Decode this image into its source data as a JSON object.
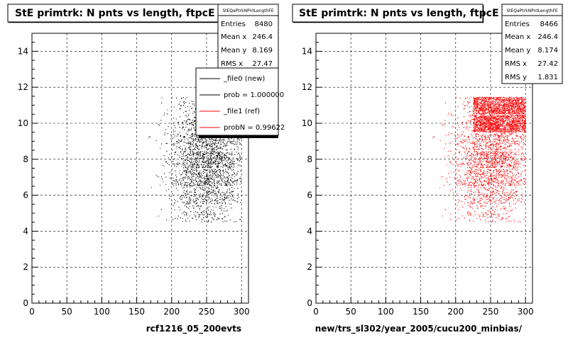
{
  "footer_text": "",
  "legend": {
    "entries": [
      {
        "label": "_file0 (new)",
        "color": "#000000"
      },
      {
        "label": "prob = 1.000000",
        "color": "#000000"
      },
      {
        "label": "_file1 (ref)",
        "color": "#ff0000"
      },
      {
        "label": "probN = 0.99622",
        "color": "#ff0000"
      }
    ]
  },
  "chart_data": [
    {
      "type": "scatter",
      "title": "StE primtrk: N pnts vs length, ftpcE",
      "xlabel": "rcf1216_05_200evts",
      "ylabel": "",
      "xlim": [
        0,
        310
      ],
      "ylim": [
        0,
        15
      ],
      "xticks": [
        "0",
        "50",
        "100",
        "150",
        "200",
        "250",
        "300"
      ],
      "yticks": [
        "0",
        "2",
        "4",
        "6",
        "8",
        "10",
        "12",
        "14"
      ],
      "grid": true,
      "marker_color": "#000000",
      "stats": {
        "name": "StEQaPtrkNPntLengthFE",
        "rows": [
          {
            "label": "Entries",
            "value": "8480"
          },
          {
            "label": "Mean x",
            "value": "246.4"
          },
          {
            "label": "Mean y",
            "value": "8.169"
          },
          {
            "label": "RMS x",
            "value": "27.47"
          }
        ]
      },
      "distribution": {
        "x_range": [
          150,
          300
        ],
        "y_range": [
          5,
          11
        ],
        "peak_x": 250,
        "dense_rows": []
      }
    },
    {
      "type": "scatter",
      "title": "StE primtrk: N pnts vs length, ftpcE",
      "xlabel": "new/trs_sl302/year_2005/cucu200_minbias/",
      "ylabel": "",
      "xlim": [
        0,
        310
      ],
      "ylim": [
        0,
        15
      ],
      "xticks": [
        "0",
        "50",
        "100",
        "150",
        "200",
        "250",
        "300"
      ],
      "yticks": [
        "0",
        "2",
        "4",
        "6",
        "8",
        "10",
        "12",
        "14"
      ],
      "grid": true,
      "marker_color": "#ff0000",
      "stats": {
        "name": "StEQaPtrkNPntLengthFE",
        "rows": [
          {
            "label": "Entries",
            "value": "8466"
          },
          {
            "label": "Mean x",
            "value": "246.4"
          },
          {
            "label": "Mean y",
            "value": "8.174"
          },
          {
            "label": "RMS x",
            "value": "27.42"
          },
          {
            "label": "RMS y",
            "value": "1.831"
          }
        ]
      },
      "distribution": {
        "x_range": [
          150,
          300
        ],
        "y_range": [
          5,
          11
        ],
        "peak_x": 250,
        "dense_rows": [
          10,
          11
        ]
      }
    }
  ]
}
